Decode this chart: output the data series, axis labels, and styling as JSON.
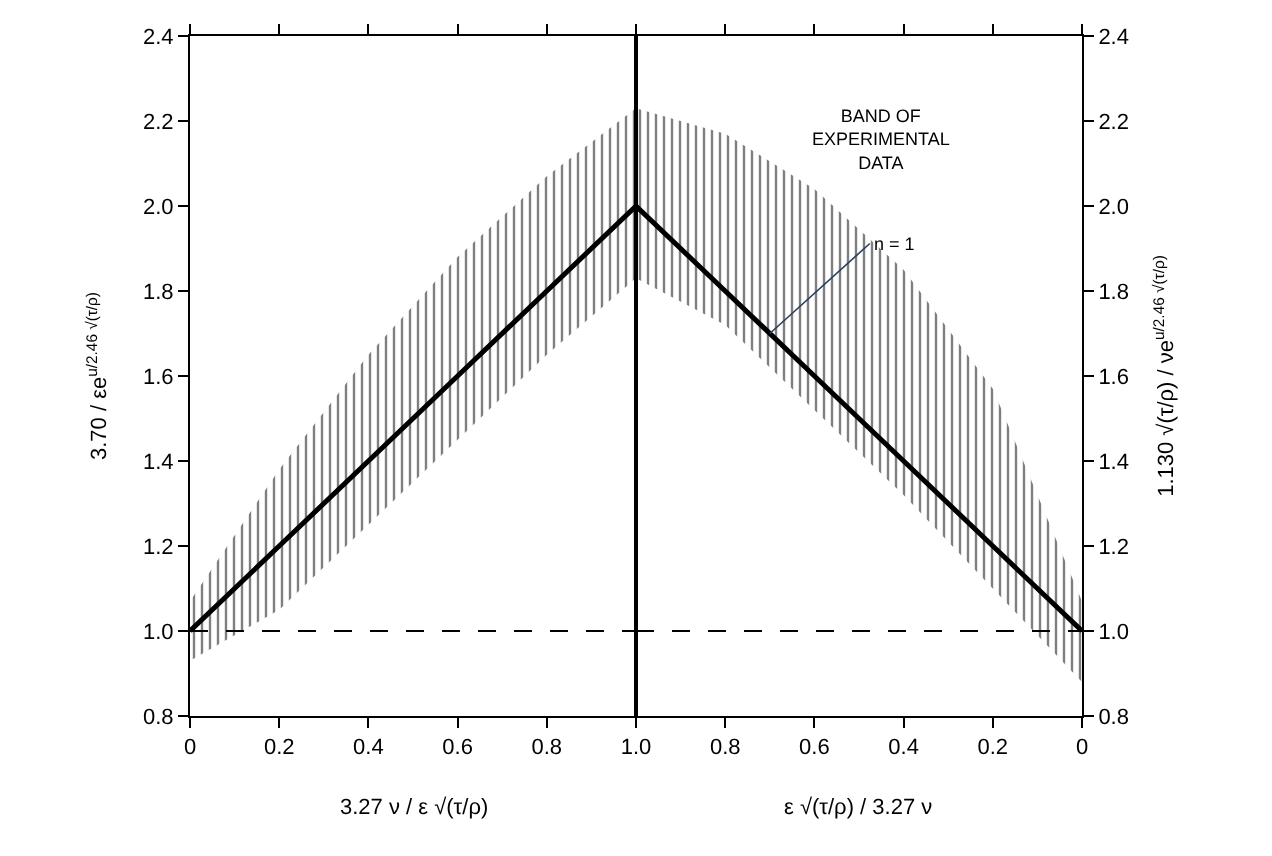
{
  "chart_data": [
    {
      "type": "line",
      "ylabel": "3.70 / εe$^{u/2.46 √(τ/ρ)}$",
      "xlabel": "3.27 ν / ε √(τ/ρ)",
      "series": [
        {
          "color": "#000000",
          "x": [
            0,
            0.2,
            0.4,
            0.6,
            0.8,
            1.0
          ],
          "values": [
            1.0,
            1.2,
            1.4,
            1.6,
            1.8,
            2.0
          ],
          "lower": [
            0.93,
            1.05,
            1.25,
            1.45,
            1.65,
            1.83
          ],
          "upper": [
            1.07,
            1.38,
            1.65,
            1.88,
            2.07,
            2.23
          ]
        }
      ],
      "xlim": [
        0,
        1
      ],
      "xticks": [
        0,
        0.2,
        0.4,
        0.6,
        0.8,
        {
          "value": 1.0,
          "label": "1.0"
        }
      ],
      "ylim": [
        0.8,
        2.4
      ],
      "yticks": [
        {
          "value": 0.8,
          "label": "0.8"
        },
        {
          "value": 1.0,
          "label": "1.0"
        },
        1.2,
        1.4,
        1.6,
        1.8,
        {
          "value": 2.0,
          "label": "2.0"
        },
        2.2,
        2.4
      ],
      "ref_lines": [
        {
          "axis": "y",
          "value": 1.0,
          "color": "#000000",
          "line_style": "dashed"
        }
      ],
      "grid": false,
      "marker": "none",
      "line_style": "solid"
    },
    {
      "type": "line",
      "ylabel": "1.130 √(τ/ρ) / νe$^{u/2.46 √(τ/ρ)}$",
      "xlabel": "ε √(τ/ρ) / 3.27 ν",
      "series": [
        {
          "name": "n = 1",
          "color": "#000000",
          "x": [
            1.0,
            0.8,
            0.6,
            0.4,
            0.2,
            0
          ],
          "values": [
            2.0,
            1.8,
            1.6,
            1.4,
            1.2,
            1.0
          ],
          "lower": [
            1.83,
            1.72,
            1.52,
            1.32,
            1.1,
            0.88
          ],
          "upper": [
            2.23,
            2.17,
            2.04,
            1.85,
            1.57,
            1.07
          ]
        }
      ],
      "xlim": [
        1,
        0
      ],
      "xticks": [
        {
          "value": 1.0,
          "label": null
        },
        0.8,
        0.6,
        0.4,
        0.2,
        0
      ],
      "ylim": [
        0.8,
        2.4
      ],
      "yticks": [
        {
          "value": 0.8,
          "label": "0.8"
        },
        {
          "value": 1.0,
          "label": "1.0"
        },
        1.2,
        1.4,
        1.6,
        1.8,
        {
          "value": 2.0,
          "label": "2.0"
        },
        2.2,
        2.4
      ],
      "ref_lines": [
        {
          "axis": "y",
          "value": 1.0,
          "color": "#000000",
          "line_style": "dashed"
        }
      ],
      "annotations": [
        "BAND OF EXPERIMENTAL DATA"
      ],
      "grid": false,
      "marker": "none",
      "line_style": "solid"
    }
  ]
}
